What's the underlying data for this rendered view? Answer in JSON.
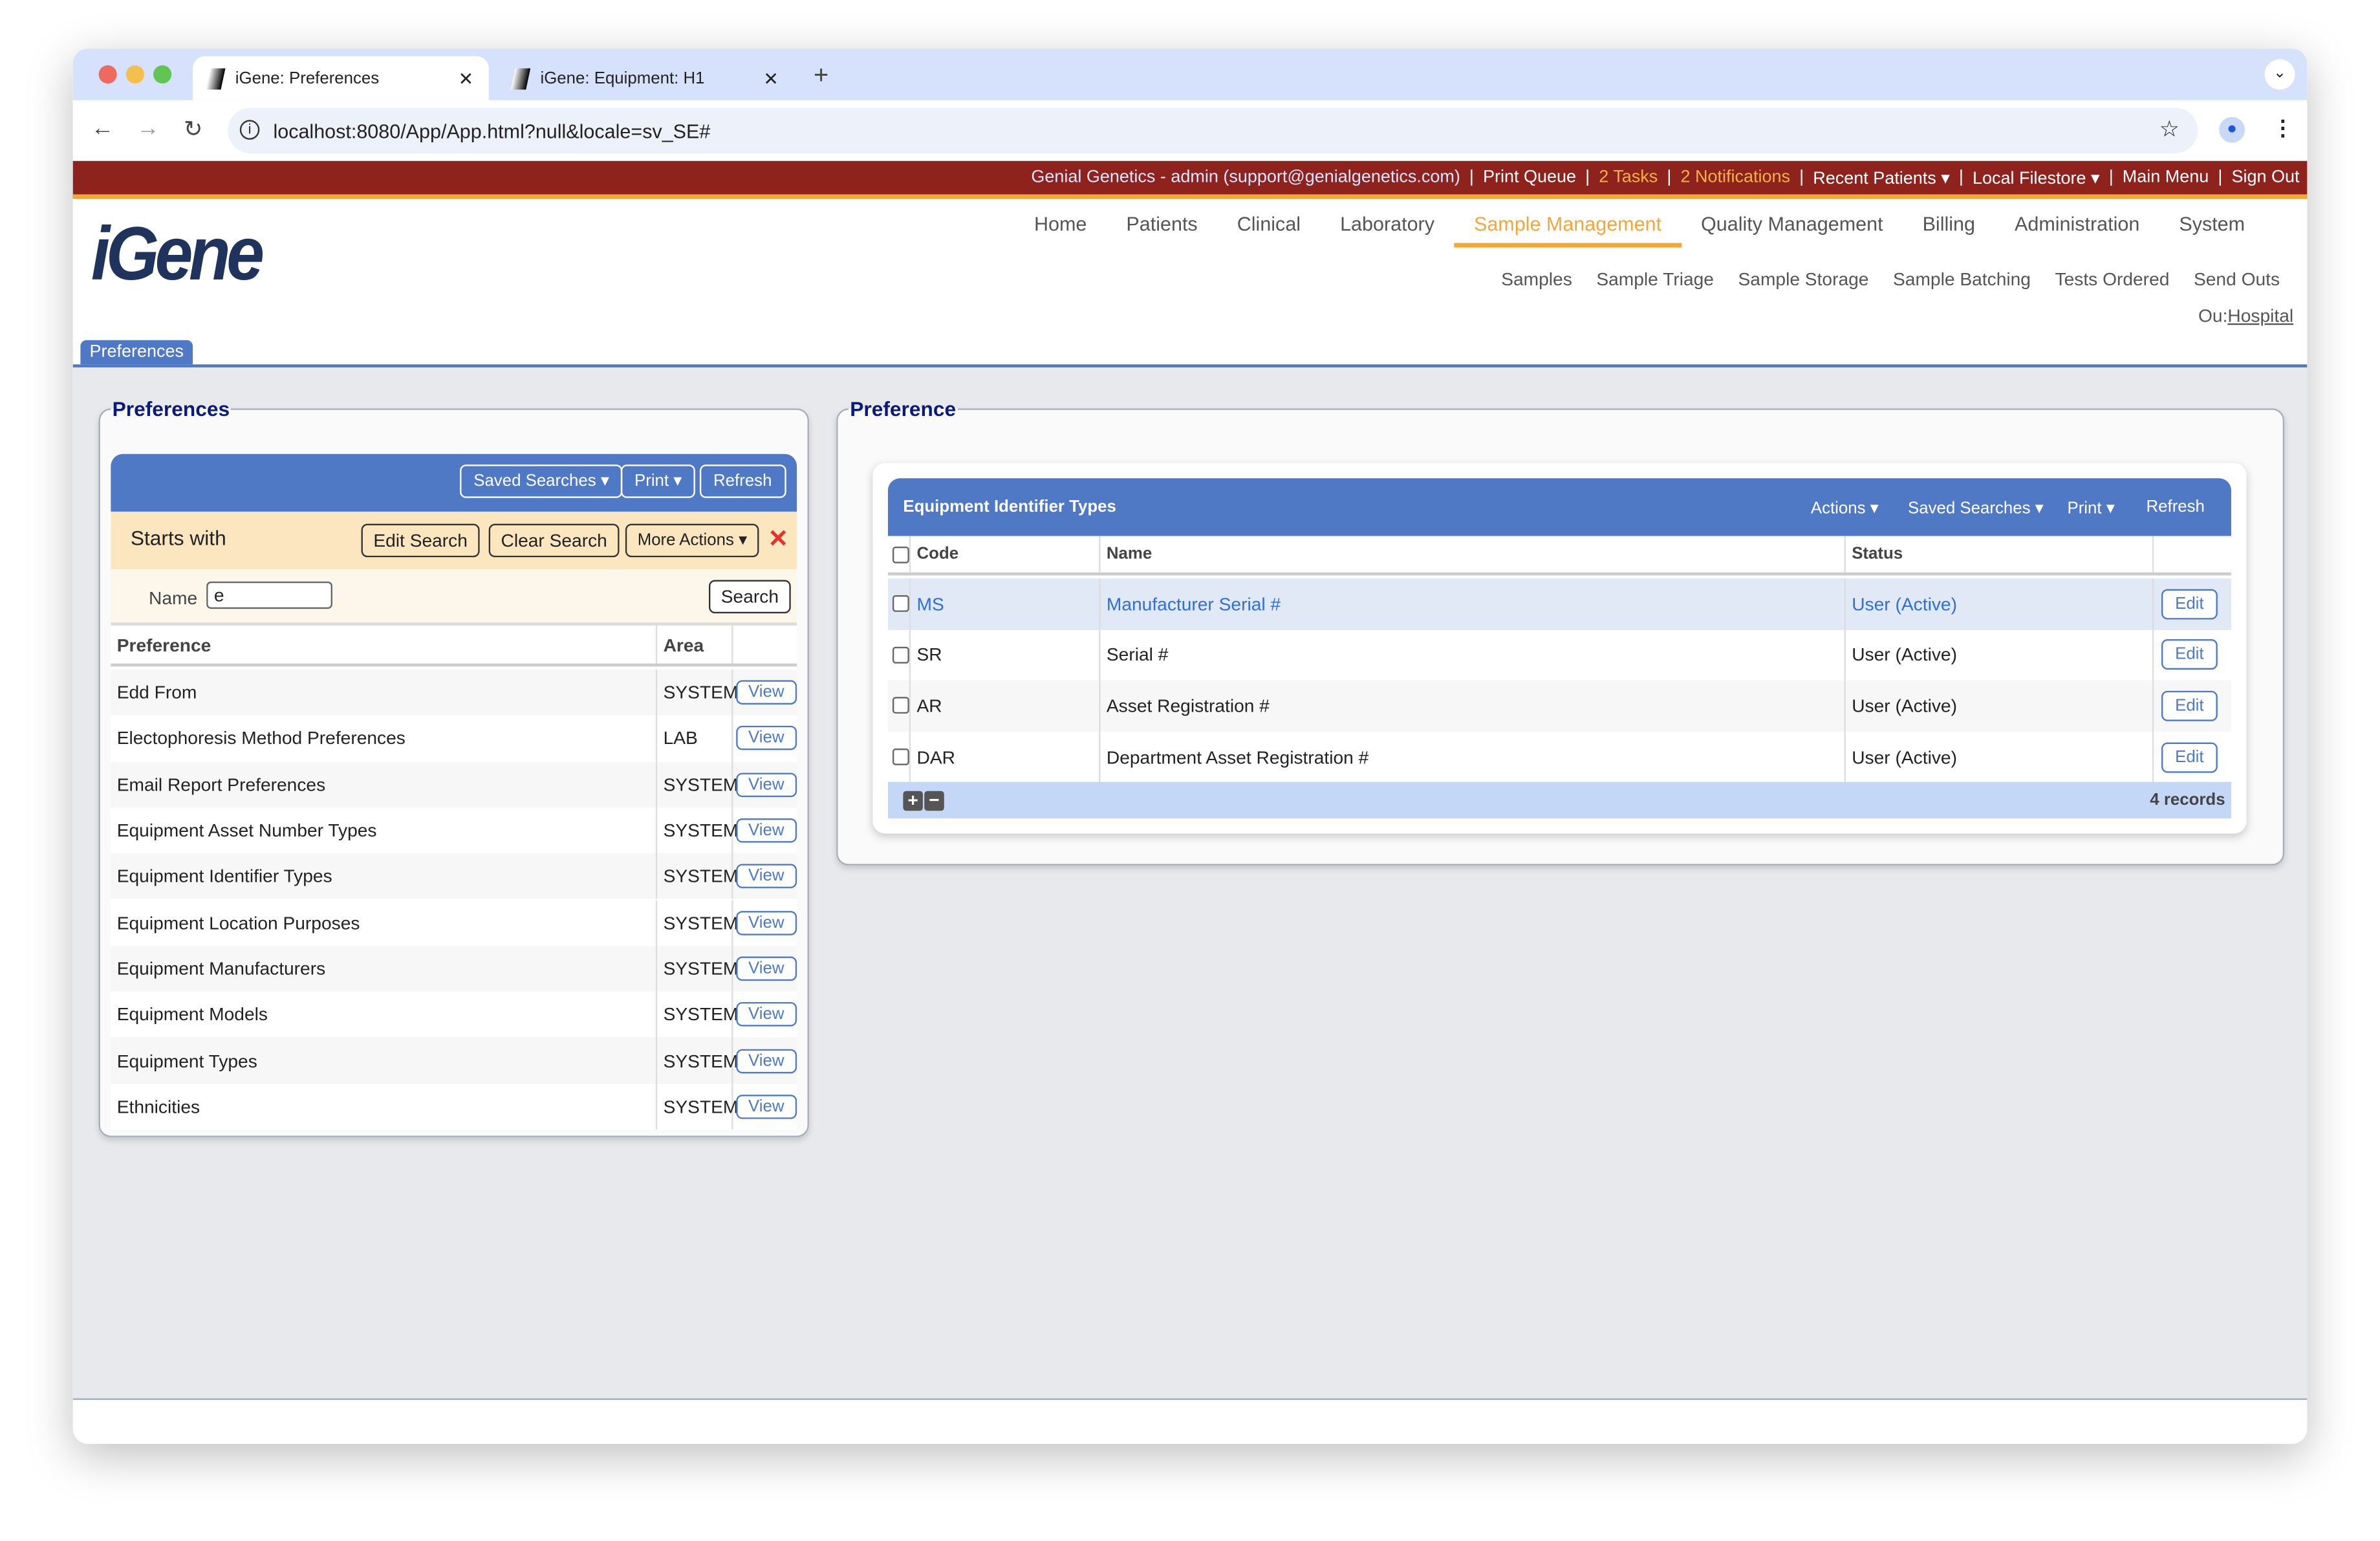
{
  "browser": {
    "tabs": [
      {
        "title": "iGene: Preferences",
        "active": true
      },
      {
        "title": "iGene: Equipment: H1",
        "active": false
      }
    ],
    "url": "localhost:8080/App/App.html?null&locale=sv_SE#"
  },
  "topbar": {
    "user": "Genial Genetics - admin (support@genialgenetics.com)",
    "print_queue": "Print Queue",
    "tasks": "2 Tasks",
    "notifications": "2 Notifications",
    "recent_patients": "Recent Patients ▾",
    "local_filestore": "Local Filestore ▾",
    "main_menu": "Main Menu",
    "sign_out": "Sign Out"
  },
  "logo": "iGene",
  "nav": [
    "Home",
    "Patients",
    "Clinical",
    "Laboratory",
    "Sample Management",
    "Quality Management",
    "Billing",
    "Administration",
    "System"
  ],
  "nav_active": "Sample Management",
  "subnav": [
    "Samples",
    "Sample Triage",
    "Sample Storage",
    "Sample Batching",
    "Tests Ordered",
    "Send Outs"
  ],
  "ou": {
    "label": "Ou:",
    "value": "Hospital"
  },
  "page_tab": "Preferences",
  "left": {
    "legend": "Preferences",
    "buttons": {
      "saved_searches": "Saved Searches ▾",
      "print": "Print ▾",
      "refresh": "Refresh"
    },
    "search": {
      "mode": "Starts with",
      "edit": "Edit Search",
      "clear": "Clear Search",
      "more": "More Actions ▾",
      "name_label": "Name",
      "name_value": "e",
      "search": "Search"
    },
    "columns": [
      "Preference",
      "Area"
    ],
    "view_label": "View",
    "rows": [
      {
        "pref": "Edd From",
        "area": "SYSTEM"
      },
      {
        "pref": "Electophoresis Method Preferences",
        "area": "LAB"
      },
      {
        "pref": "Email Report Preferences",
        "area": "SYSTEM"
      },
      {
        "pref": "Equipment Asset Number Types",
        "area": "SYSTEM"
      },
      {
        "pref": "Equipment Identifier Types",
        "area": "SYSTEM"
      },
      {
        "pref": "Equipment Location Purposes",
        "area": "SYSTEM"
      },
      {
        "pref": "Equipment Manufacturers",
        "area": "SYSTEM"
      },
      {
        "pref": "Equipment Models",
        "area": "SYSTEM"
      },
      {
        "pref": "Equipment Types",
        "area": "SYSTEM"
      },
      {
        "pref": "Ethnicities",
        "area": "SYSTEM"
      }
    ]
  },
  "right": {
    "legend": "Preference",
    "title": "Equipment Identifier Types",
    "buttons": {
      "actions": "Actions ▾",
      "saved_searches": "Saved Searches ▾",
      "print": "Print ▾",
      "refresh": "Refresh"
    },
    "columns": [
      "Code",
      "Name",
      "Status"
    ],
    "edit_label": "Edit",
    "rows": [
      {
        "code": "MS",
        "name": "Manufacturer Serial #",
        "status": "User (Active)",
        "selected": true
      },
      {
        "code": "SR",
        "name": "Serial #",
        "status": "User (Active)"
      },
      {
        "code": "AR",
        "name": "Asset Registration #",
        "status": "User (Active)"
      },
      {
        "code": "DAR",
        "name": "Department Asset Registration #",
        "status": "User (Active)"
      }
    ],
    "records": "4 records"
  },
  "colors": {
    "topbar": "#8e231d",
    "accent": "#f0a83a",
    "primary": "#4f79c5",
    "logo": "#1f335c"
  }
}
